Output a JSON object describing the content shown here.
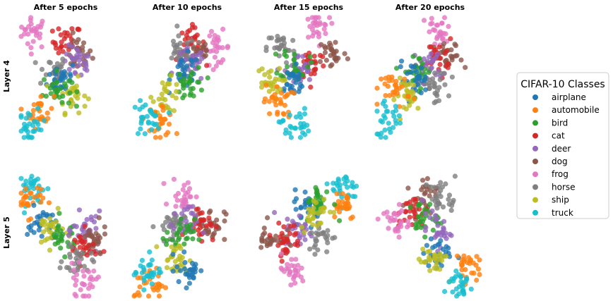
{
  "chart_data": {
    "type": "scatter",
    "columns": [
      "After 5 epochs",
      "After 10 epochs",
      "After 15 epochs",
      "After 20 epochs"
    ],
    "rows": [
      "Layer 4",
      "Layer 5"
    ],
    "legend": {
      "title": "CIFAR-10 Classes",
      "placement": "right",
      "classes": [
        {
          "name": "airplane",
          "color": "#1f77b4"
        },
        {
          "name": "automobile",
          "color": "#ff7f0e"
        },
        {
          "name": "bird",
          "color": "#2ca02c"
        },
        {
          "name": "cat",
          "color": "#d62728"
        },
        {
          "name": "deer",
          "color": "#9467bd"
        },
        {
          "name": "dog",
          "color": "#8c564b"
        },
        {
          "name": "frog",
          "color": "#e377c2"
        },
        {
          "name": "horse",
          "color": "#7f7f7f"
        },
        {
          "name": "ship",
          "color": "#bcbd22"
        },
        {
          "name": "truck",
          "color": "#17becf"
        }
      ]
    },
    "axes": "off",
    "grid": false,
    "panels": [
      {
        "row": 0,
        "col": 0,
        "centroids": {
          "frog": [
            0.12,
            0.88
          ],
          "cat": [
            0.45,
            0.8
          ],
          "dog": [
            0.55,
            0.7
          ],
          "deer": [
            0.55,
            0.62
          ],
          "horse": [
            0.3,
            0.55
          ],
          "airplane": [
            0.4,
            0.5
          ],
          "ship": [
            0.5,
            0.35
          ],
          "bird": [
            0.35,
            0.4
          ],
          "automobile": [
            0.18,
            0.22
          ],
          "truck": [
            0.1,
            0.08
          ]
        }
      },
      {
        "row": 0,
        "col": 1,
        "centroids": {
          "frog": [
            0.8,
            0.75
          ],
          "cat": [
            0.55,
            0.78
          ],
          "dog": [
            0.62,
            0.72
          ],
          "horse": [
            0.45,
            0.7
          ],
          "deer": [
            0.55,
            0.6
          ],
          "airplane": [
            0.5,
            0.55
          ],
          "bird": [
            0.55,
            0.45
          ],
          "ship": [
            0.32,
            0.35
          ],
          "automobile": [
            0.25,
            0.15
          ],
          "truck": [
            0.12,
            0.15
          ]
        }
      },
      {
        "row": 0,
        "col": 2,
        "centroids": {
          "frog": [
            0.58,
            0.92
          ],
          "horse": [
            0.25,
            0.75
          ],
          "dog": [
            0.75,
            0.7
          ],
          "cat": [
            0.55,
            0.62
          ],
          "deer": [
            0.42,
            0.55
          ],
          "bird": [
            0.38,
            0.62
          ],
          "airplane": [
            0.35,
            0.45
          ],
          "ship": [
            0.12,
            0.45
          ],
          "automobile": [
            0.22,
            0.3
          ],
          "truck": [
            0.38,
            0.1
          ]
        }
      },
      {
        "row": 0,
        "col": 3,
        "centroids": {
          "frog": [
            0.6,
            0.88
          ],
          "dog": [
            0.7,
            0.65
          ],
          "cat": [
            0.6,
            0.68
          ],
          "deer": [
            0.5,
            0.6
          ],
          "horse": [
            0.55,
            0.42
          ],
          "bird": [
            0.4,
            0.55
          ],
          "airplane": [
            0.35,
            0.48
          ],
          "ship": [
            0.32,
            0.35
          ],
          "automobile": [
            0.18,
            0.4
          ],
          "truck": [
            0.1,
            0.15
          ]
        }
      },
      {
        "row": 1,
        "col": 0,
        "centroids": {
          "truck": [
            0.12,
            0.9
          ],
          "automobile": [
            0.08,
            0.8
          ],
          "airplane": [
            0.2,
            0.6
          ],
          "ship": [
            0.28,
            0.55
          ],
          "bird": [
            0.4,
            0.5
          ],
          "deer": [
            0.65,
            0.55
          ],
          "dog": [
            0.7,
            0.45
          ],
          "cat": [
            0.6,
            0.4
          ],
          "horse": [
            0.55,
            0.3
          ],
          "frog": [
            0.6,
            0.1
          ]
        }
      },
      {
        "row": 1,
        "col": 1,
        "centroids": {
          "frog": [
            0.5,
            0.85
          ],
          "dog": [
            0.75,
            0.6
          ],
          "cat": [
            0.65,
            0.62
          ],
          "horse": [
            0.35,
            0.58
          ],
          "deer": [
            0.48,
            0.6
          ],
          "bird": [
            0.45,
            0.5
          ],
          "ship": [
            0.4,
            0.3
          ],
          "airplane": [
            0.55,
            0.22
          ],
          "automobile": [
            0.15,
            0.1
          ],
          "truck": [
            0.12,
            0.22
          ]
        }
      },
      {
        "row": 1,
        "col": 2,
        "centroids": {
          "truck": [
            0.88,
            0.9
          ],
          "automobile": [
            0.85,
            0.78
          ],
          "airplane": [
            0.52,
            0.75
          ],
          "bird": [
            0.62,
            0.78
          ],
          "deer": [
            0.42,
            0.55
          ],
          "horse": [
            0.65,
            0.5
          ],
          "dog": [
            0.15,
            0.48
          ],
          "cat": [
            0.3,
            0.48
          ],
          "frog": [
            0.35,
            0.2
          ],
          "ship": [
            0.58,
            0.7
          ]
        }
      },
      {
        "row": 1,
        "col": 3,
        "centroids": {
          "dog": [
            0.45,
            0.85
          ],
          "horse": [
            0.65,
            0.82
          ],
          "cat": [
            0.35,
            0.7
          ],
          "frog": [
            0.18,
            0.62
          ],
          "bird": [
            0.45,
            0.65
          ],
          "deer": [
            0.58,
            0.55
          ],
          "airplane": [
            0.6,
            0.35
          ],
          "ship": [
            0.55,
            0.3
          ],
          "automobile": [
            0.85,
            0.25
          ],
          "truck": [
            0.8,
            0.1
          ]
        }
      }
    ]
  }
}
